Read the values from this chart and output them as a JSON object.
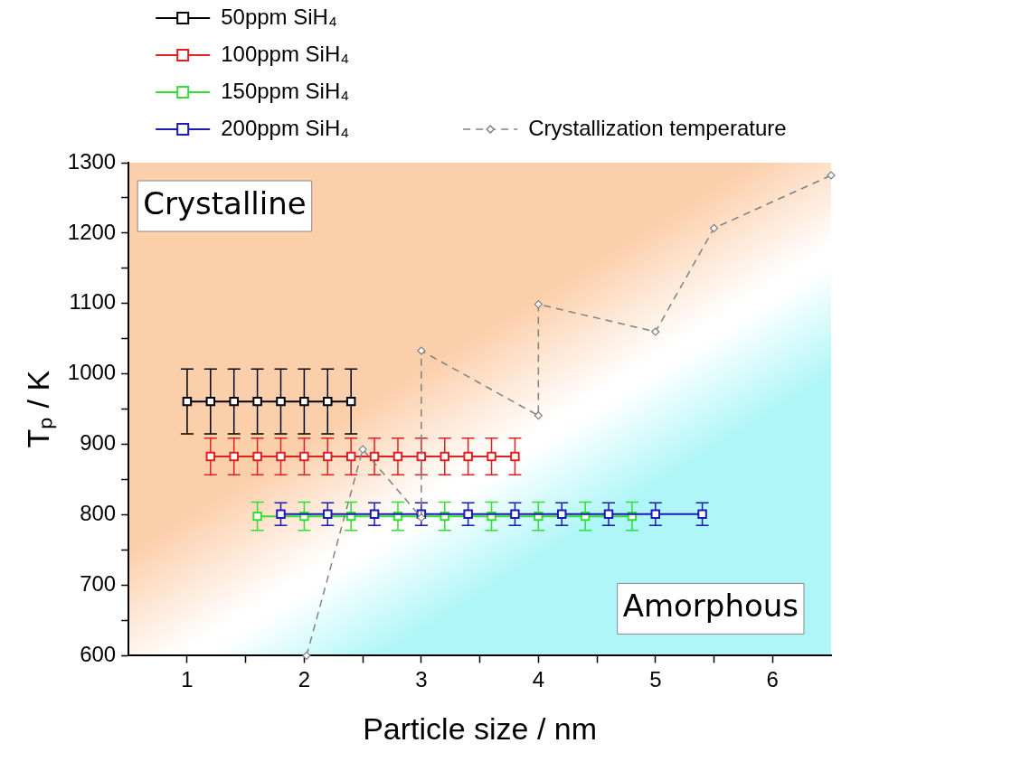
{
  "chart_data": {
    "type": "line",
    "xlabel": "Particle size / nm",
    "ylabel": "Tₚ / K",
    "xlim": [
      0.5,
      6.5
    ],
    "xticks": [
      1,
      {
        "value": 1.5,
        "label": null
      },
      2,
      {
        "value": 2.5,
        "label": null
      },
      3,
      {
        "value": 3.5,
        "label": null
      },
      4,
      {
        "value": 4.5,
        "label": null
      },
      5,
      {
        "value": 5.5,
        "label": null
      },
      6
    ],
    "ylim": [
      600,
      1300
    ],
    "yticks": [
      600,
      {
        "value": 650,
        "label": null
      },
      700,
      {
        "value": 750,
        "label": null
      },
      800,
      {
        "value": 850,
        "label": null
      },
      900,
      {
        "value": 950,
        "label": null
      },
      1000,
      {
        "value": 1050,
        "label": null
      },
      1100,
      {
        "value": 1150,
        "label": null
      },
      1200,
      {
        "value": 1250,
        "label": null
      },
      1300
    ],
    "grid": false,
    "legend": "top left",
    "annotations": [
      "Crystalline",
      "Amorphous"
    ],
    "series": [
      {
        "name": "50ppm SiH₄",
        "color": "#000000",
        "marker": "square",
        "line_style": "solid",
        "x": [
          1.0,
          1.2,
          1.4,
          1.6,
          1.8,
          2.0,
          2.2,
          2.4
        ],
        "values": [
          961,
          961,
          961,
          961,
          961,
          961,
          961,
          961
        ],
        "errors": [
          46,
          46,
          46,
          46,
          46,
          46,
          46,
          46
        ]
      },
      {
        "name": "100ppm SiH₄",
        "color": "#e02020",
        "marker": "square",
        "line_style": "solid",
        "x": [
          1.2,
          1.4,
          1.6,
          1.8,
          2.0,
          2.2,
          2.4,
          2.6,
          2.8,
          3.0,
          3.2,
          3.4,
          3.6,
          3.8
        ],
        "values": [
          883,
          883,
          883,
          883,
          883,
          883,
          883,
          883,
          883,
          883,
          883,
          883,
          883,
          883
        ],
        "errors": [
          26,
          26,
          26,
          26,
          26,
          26,
          26,
          26,
          26,
          26,
          26,
          26,
          26,
          26
        ]
      },
      {
        "name": "150ppm SiH₄",
        "color": "#33dd33",
        "marker": "square",
        "line_style": "solid",
        "x": [
          1.6,
          2.0,
          2.4,
          2.8,
          3.2,
          3.6,
          4.0,
          4.4,
          4.8
        ],
        "values": [
          798,
          798,
          798,
          798,
          798,
          798,
          798,
          798,
          798
        ],
        "errors": [
          20,
          20,
          20,
          20,
          20,
          20,
          20,
          20,
          20
        ]
      },
      {
        "name": "200ppm SiH₄",
        "color": "#1a1ab4",
        "marker": "square",
        "line_style": "solid",
        "x": [
          1.8,
          2.2,
          2.6,
          3.0,
          3.4,
          3.8,
          4.2,
          4.6,
          5.0,
          5.4
        ],
        "values": [
          801,
          801,
          801,
          801,
          801,
          801,
          801,
          801,
          801,
          801
        ],
        "errors": [
          16,
          16,
          16,
          16,
          16,
          16,
          16,
          16,
          16,
          16
        ]
      },
      {
        "name": "Crystallization temperature",
        "color": "#808080",
        "marker": "diamond",
        "line_style": "dashed",
        "x": [
          2.02,
          2.5,
          3.0,
          3.0,
          4.0,
          4.0,
          5.0,
          5.5,
          6.5
        ],
        "values": [
          600,
          893,
          796,
          1033,
          941,
          1099,
          1060,
          1207,
          1282
        ]
      }
    ]
  }
}
